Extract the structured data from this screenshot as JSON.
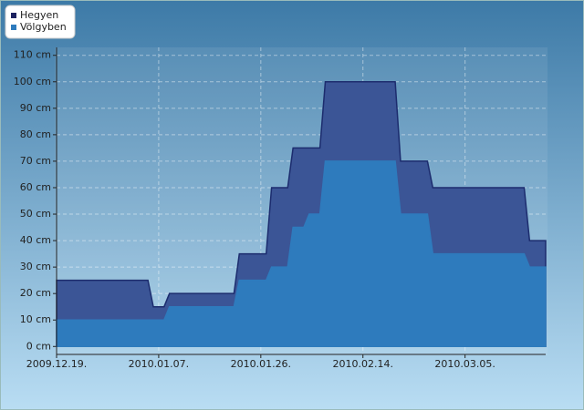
{
  "chart_data": {
    "type": "area",
    "x": [
      "2009.12.19",
      "2010.01.05",
      "2010.01.06",
      "2010.01.08",
      "2010.01.09",
      "2010.01.21",
      "2010.01.22",
      "2010.01.27",
      "2010.01.28",
      "2010.01.31",
      "2010.02.01",
      "2010.02.03",
      "2010.02.04",
      "2010.02.06",
      "2010.02.07",
      "2010.02.20",
      "2010.02.21",
      "2010.02.26",
      "2010.02.27",
      "2010.03.16",
      "2010.03.17",
      "2010.03.20"
    ],
    "series": [
      {
        "name": "Hegyen",
        "color": "#3b5596",
        "values": [
          25,
          25,
          15,
          15,
          20,
          20,
          35,
          35,
          60,
          60,
          75,
          75,
          75,
          75,
          100,
          100,
          70,
          70,
          60,
          60,
          40,
          40
        ]
      },
      {
        "name": "Völgyben",
        "color": "#2e7bbd",
        "values": [
          10,
          10,
          10,
          10,
          15,
          15,
          25,
          25,
          30,
          30,
          45,
          45,
          50,
          50,
          70,
          70,
          50,
          50,
          35,
          35,
          30,
          30
        ]
      }
    ],
    "xlim": [
      "2009.12.19",
      "2010.03.20"
    ],
    "xticks": [
      {
        "value": "2009.12.19",
        "label": "2009.12.19."
      },
      {
        "value": "2010.01.07",
        "label": "2010.01.07."
      },
      {
        "value": "2010.01.26",
        "label": "2010.01.26."
      },
      {
        "value": "2010.02.14",
        "label": "2010.02.14."
      },
      {
        "value": "2010.03.05",
        "label": "2010.03.05."
      }
    ],
    "ylim": [
      -3,
      113
    ],
    "yticks": [
      {
        "value": 0,
        "label": "0 cm"
      },
      {
        "value": 10,
        "label": "10 cm"
      },
      {
        "value": 20,
        "label": "20 cm"
      },
      {
        "value": 30,
        "label": "30 cm"
      },
      {
        "value": 40,
        "label": "40 cm"
      },
      {
        "value": 50,
        "label": "50 cm"
      },
      {
        "value": 60,
        "label": "60 cm"
      },
      {
        "value": 70,
        "label": "70 cm"
      },
      {
        "value": 80,
        "label": "80 cm"
      },
      {
        "value": 90,
        "label": "90 cm"
      },
      {
        "value": 100,
        "label": "100 cm"
      },
      {
        "value": 110,
        "label": "110 cm"
      }
    ],
    "grid": true
  }
}
